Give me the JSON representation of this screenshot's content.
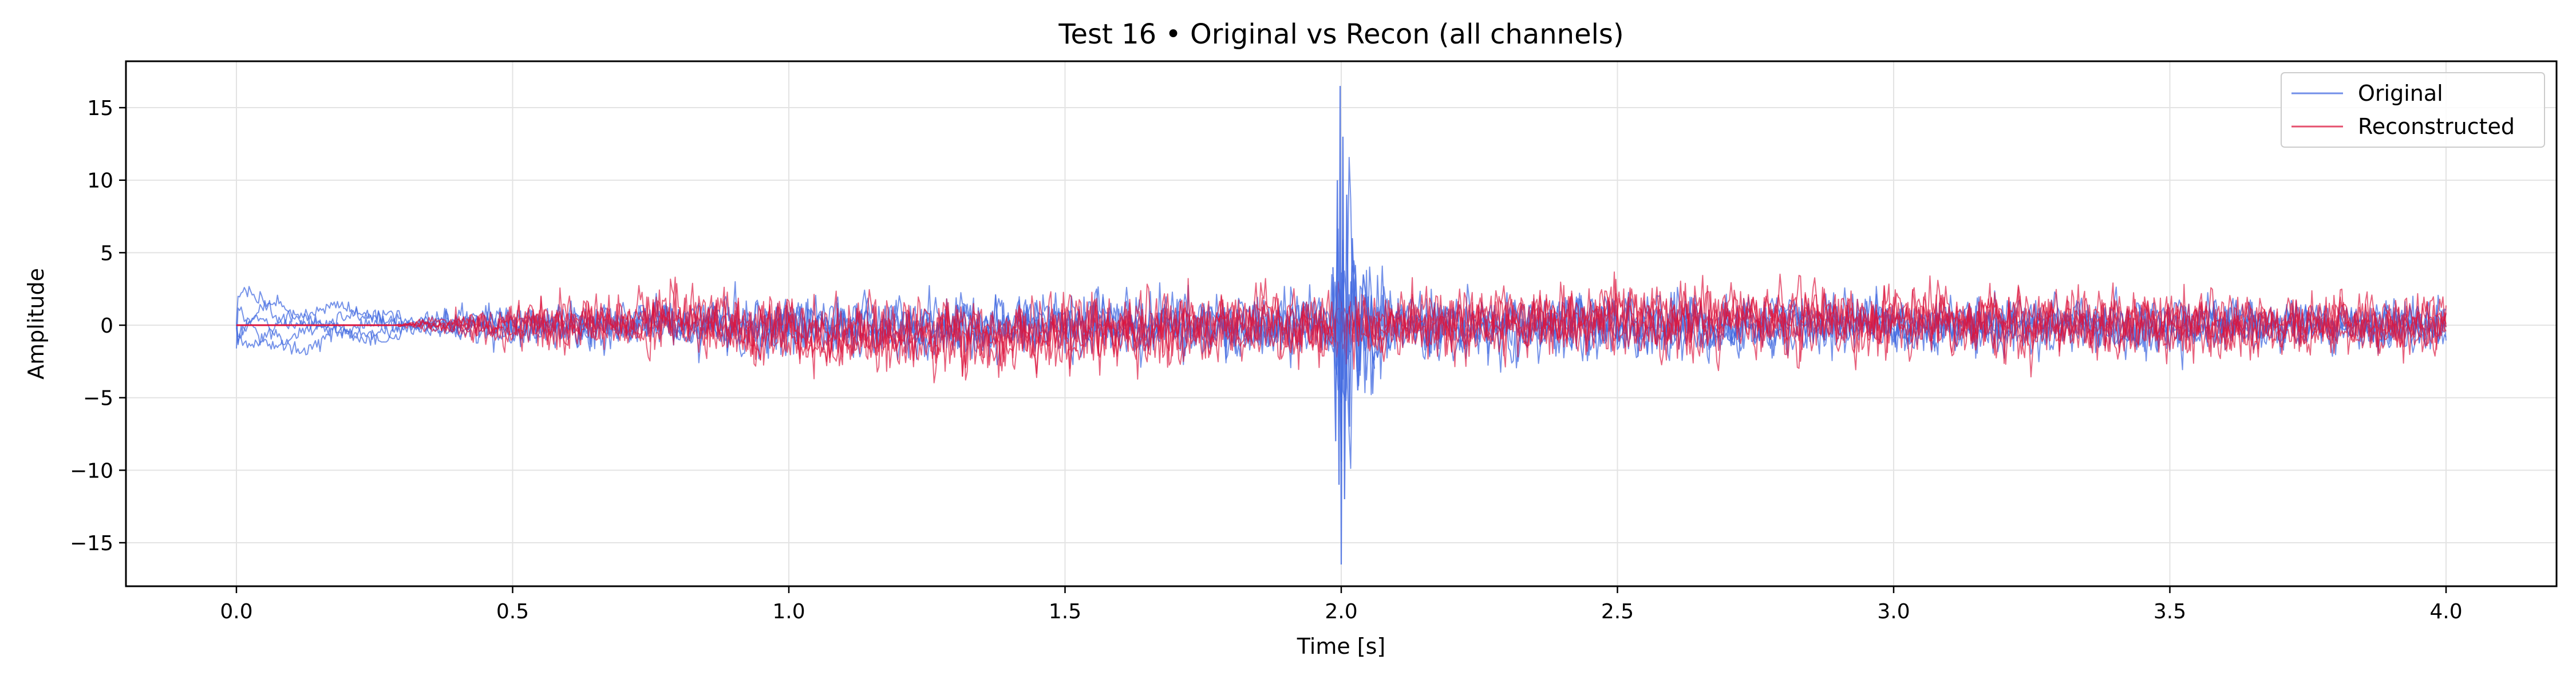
{
  "chart_data": {
    "type": "line",
    "title": "Test 16 • Original vs Recon (all channels)",
    "xlabel": "Time [s]",
    "ylabel": "Amplitude",
    "xlim": [
      -0.2,
      4.2
    ],
    "ylim": [
      -18,
      18.2
    ],
    "x_ticks": [
      0.0,
      0.5,
      1.0,
      1.5,
      2.0,
      2.5,
      3.0,
      3.5,
      4.0
    ],
    "x_tick_labels": [
      "0.0",
      "0.5",
      "1.0",
      "1.5",
      "2.0",
      "2.5",
      "3.0",
      "3.5",
      "4.0"
    ],
    "y_ticks": [
      15,
      10,
      5,
      0,
      -5,
      -10,
      -15
    ],
    "y_tick_labels": [
      "15",
      "10",
      "5",
      "0",
      "−5",
      "−10",
      "−15"
    ],
    "grid": true,
    "legend_position": "top-right",
    "series": [
      {
        "name": "Original",
        "color": "#4169E1",
        "description_channels": 5,
        "envelope": [
          {
            "x": 0.0,
            "y_min": -3.0,
            "y_max": 3.0
          },
          {
            "x": 0.3,
            "y_min": -1.0,
            "y_max": 1.0
          },
          {
            "x": 0.5,
            "y_min": -2.5,
            "y_max": 2.5
          },
          {
            "x": 1.0,
            "y_min": -3.5,
            "y_max": 3.5
          },
          {
            "x": 1.5,
            "y_min": -3.5,
            "y_max": 3.5
          },
          {
            "x": 1.98,
            "y_min": -4.0,
            "y_max": 4.0
          },
          {
            "x": 2.0,
            "y_min": -16.5,
            "y_max": 16.5
          },
          {
            "x": 2.05,
            "y_min": -8.0,
            "y_max": 8.0
          },
          {
            "x": 2.1,
            "y_min": -4.0,
            "y_max": 4.0
          },
          {
            "x": 3.0,
            "y_min": -3.5,
            "y_max": 3.5
          },
          {
            "x": 4.0,
            "y_min": -3.0,
            "y_max": 3.0
          }
        ]
      },
      {
        "name": "Reconstructed",
        "color": "#DC143C",
        "description_channels": 5,
        "envelope": [
          {
            "x": 0.0,
            "y_min": 0.0,
            "y_max": 0.0
          },
          {
            "x": 0.28,
            "y_min": 0.0,
            "y_max": 0.0
          },
          {
            "x": 0.5,
            "y_min": -2.5,
            "y_max": 2.5
          },
          {
            "x": 0.85,
            "y_min": -4.0,
            "y_max": 4.3
          },
          {
            "x": 1.07,
            "y_min": -5.3,
            "y_max": 3.5
          },
          {
            "x": 2.5,
            "y_min": -4.0,
            "y_max": 4.7
          },
          {
            "x": 2.77,
            "y_min": -4.0,
            "y_max": 4.7
          },
          {
            "x": 4.0,
            "y_min": -3.5,
            "y_max": 3.5
          }
        ]
      }
    ]
  }
}
